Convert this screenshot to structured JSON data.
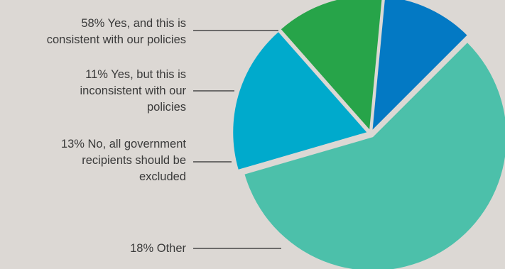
{
  "chart_data": {
    "type": "pie",
    "slices": [
      {
        "label_lines": [
          "58%  Yes, and this is",
          "consistent with our policies"
        ],
        "value": 58,
        "color": "#4cc0aa"
      },
      {
        "label_lines": [
          "18%  Other"
        ],
        "value": 18,
        "color": "#00aacc"
      },
      {
        "label_lines": [
          "13%  No, all government",
          "recipients should be",
          "excluded"
        ],
        "value": 13,
        "color": "#27a449"
      },
      {
        "label_lines": [
          "11%  Yes, but this is",
          "inconsistent with our",
          "policies"
        ],
        "value": 11,
        "color": "#0379c4"
      }
    ]
  }
}
